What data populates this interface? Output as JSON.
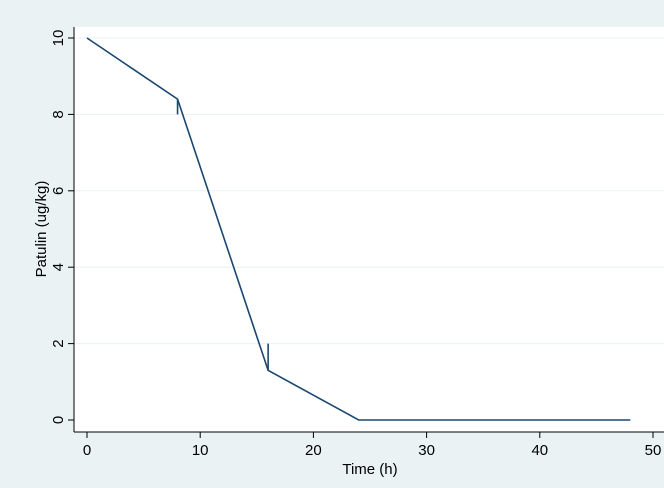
{
  "chart_data": {
    "type": "line",
    "title": "",
    "xlabel": "Time (h)",
    "ylabel": "Patulin (ug/kg)",
    "xlim": [
      0,
      50
    ],
    "ylim": [
      0,
      10
    ],
    "xticks": [
      "0",
      "10",
      "20",
      "30",
      "40",
      "50"
    ],
    "yticks": [
      "0",
      "2",
      "4",
      "6",
      "8",
      "10"
    ],
    "grid": true,
    "legend": "none",
    "series": [
      {
        "x": [
          0,
          8,
          16,
          24,
          48
        ],
        "y": [
          10,
          8.4,
          1.3,
          0,
          0
        ],
        "color": "#1a476f"
      }
    ],
    "error_bars": [
      {
        "x": 8,
        "y_low": 8.0,
        "y_high": 8.4
      },
      {
        "x": 16,
        "y_low": 1.3,
        "y_high": 2.0
      }
    ],
    "colors": {
      "outer_background": "#eaf2f3",
      "plot_background": "#ffffff",
      "grid": "#eaf2f3",
      "axis": "#000000"
    }
  }
}
